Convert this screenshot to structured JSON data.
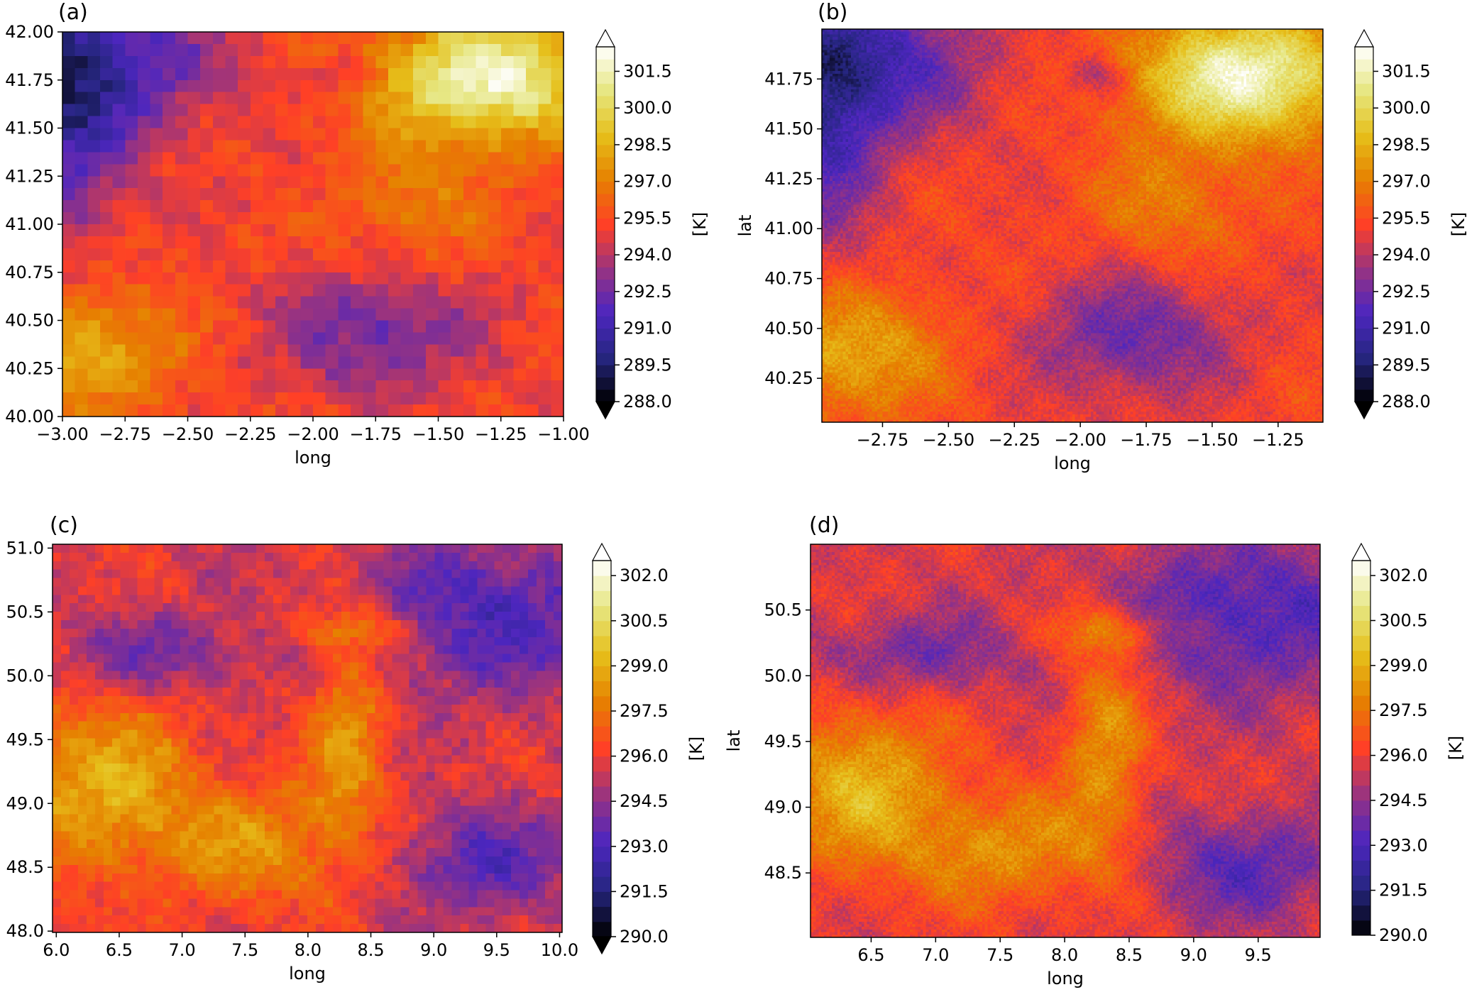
{
  "chart_data": [
    {
      "type": "heatmap",
      "panel": "(a)",
      "xlabel": "long",
      "ylabel": "",
      "xlim": [
        -3.0,
        -1.0
      ],
      "ylim": [
        40.0,
        42.0
      ],
      "xticks": [
        "−3.00",
        "−2.75",
        "−2.50",
        "−2.25",
        "−2.00",
        "−1.75",
        "−1.50",
        "−1.25",
        "−1.00"
      ],
      "xtick_values": [
        -3.0,
        -2.75,
        -2.5,
        -2.25,
        -2.0,
        -1.75,
        -1.5,
        -1.25,
        -1.0
      ],
      "yticks": [
        "40.00",
        "40.25",
        "40.50",
        "40.75",
        "41.00",
        "41.25",
        "41.50",
        "41.75",
        "42.00"
      ],
      "ytick_values": [
        40.0,
        40.25,
        40.5,
        40.75,
        41.0,
        41.25,
        41.5,
        41.75,
        42.0
      ],
      "grid_cells": [
        40,
        32
      ],
      "colorbar": {
        "label": "[K]",
        "min": 288.0,
        "max": 302.5,
        "extend": "both",
        "ticks": [
          "288.0",
          "289.5",
          "291.0",
          "292.5",
          "294.0",
          "295.5",
          "297.0",
          "298.5",
          "300.0",
          "301.5"
        ],
        "tick_values": [
          288.0,
          289.5,
          291.0,
          292.5,
          294.0,
          295.5,
          297.0,
          298.5,
          300.0,
          301.5
        ]
      }
    },
    {
      "type": "heatmap",
      "panel": "(b)",
      "xlabel": "long",
      "ylabel": "lat",
      "xlim": [
        -2.98,
        -1.08
      ],
      "ylim": [
        40.03,
        42.0
      ],
      "xticks": [
        "−2.75",
        "−2.50",
        "−2.25",
        "−2.00",
        "−1.75",
        "−1.50",
        "−1.25"
      ],
      "xtick_values": [
        -2.75,
        -2.5,
        -2.25,
        -2.0,
        -1.75,
        -1.5,
        -1.25
      ],
      "yticks": [
        "40.25",
        "40.50",
        "40.75",
        "41.00",
        "41.25",
        "41.50",
        "41.75"
      ],
      "ytick_values": [
        40.25,
        40.5,
        40.75,
        41.0,
        41.25,
        41.5,
        41.75
      ],
      "grid_cells": [
        190,
        150
      ],
      "colorbar": {
        "label": "[K]",
        "min": 288.0,
        "max": 302.5,
        "extend": "both",
        "ticks": [
          "288.0",
          "289.5",
          "291.0",
          "292.5",
          "294.0",
          "295.5",
          "297.0",
          "298.5",
          "300.0",
          "301.5"
        ],
        "tick_values": [
          288.0,
          289.5,
          291.0,
          292.5,
          294.0,
          295.5,
          297.0,
          298.5,
          300.0,
          301.5
        ]
      }
    },
    {
      "type": "heatmap",
      "panel": "(c)",
      "xlabel": "long",
      "ylabel": "",
      "xlim": [
        5.97,
        10.02
      ],
      "ylim": [
        47.99,
        51.03
      ],
      "xticks": [
        "6.0",
        "6.5",
        "7.0",
        "7.5",
        "8.0",
        "8.5",
        "9.0",
        "9.5",
        "10.0"
      ],
      "xtick_values": [
        6.0,
        6.5,
        7.0,
        7.5,
        8.0,
        8.5,
        9.0,
        9.5,
        10.0
      ],
      "yticks": [
        "48.0",
        "48.5",
        "49.0",
        "49.5",
        "50.0",
        "50.5",
        "51.0"
      ],
      "ytick_values": [
        48.0,
        48.5,
        49.0,
        49.5,
        50.0,
        50.5,
        51.0
      ],
      "grid_cells": [
        60,
        46
      ],
      "colorbar": {
        "label": "[K]",
        "min": 290.0,
        "max": 302.5,
        "extend": "both",
        "ticks": [
          "290.0",
          "291.5",
          "293.0",
          "294.5",
          "296.0",
          "297.5",
          "299.0",
          "300.5",
          "302.0"
        ],
        "tick_values": [
          290.0,
          291.5,
          293.0,
          294.5,
          296.0,
          297.5,
          299.0,
          300.5,
          302.0
        ]
      }
    },
    {
      "type": "heatmap",
      "panel": "(d)",
      "xlabel": "long",
      "ylabel": "lat",
      "xlim": [
        6.03,
        9.98
      ],
      "ylim": [
        48.01,
        51.0
      ],
      "xticks": [
        "6.5",
        "7.0",
        "7.5",
        "8.0",
        "8.5",
        "9.0",
        "9.5"
      ],
      "xtick_values": [
        6.5,
        7.0,
        7.5,
        8.0,
        8.5,
        9.0,
        9.5
      ],
      "yticks": [
        "48.5",
        "49.0",
        "49.5",
        "50.0",
        "50.5"
      ],
      "ytick_values": [
        48.5,
        49.0,
        49.5,
        50.0,
        50.5
      ],
      "grid_cells": [
        190,
        150
      ],
      "colorbar": {
        "label": "[K]",
        "min": 290.0,
        "max": 302.5,
        "extend": "max",
        "ticks": [
          "290.0",
          "291.5",
          "293.0",
          "294.5",
          "296.0",
          "297.5",
          "299.0",
          "300.5",
          "302.0"
        ],
        "tick_values": [
          290.0,
          291.5,
          293.0,
          294.5,
          296.0,
          297.5,
          299.0,
          300.5,
          302.0
        ]
      }
    }
  ]
}
